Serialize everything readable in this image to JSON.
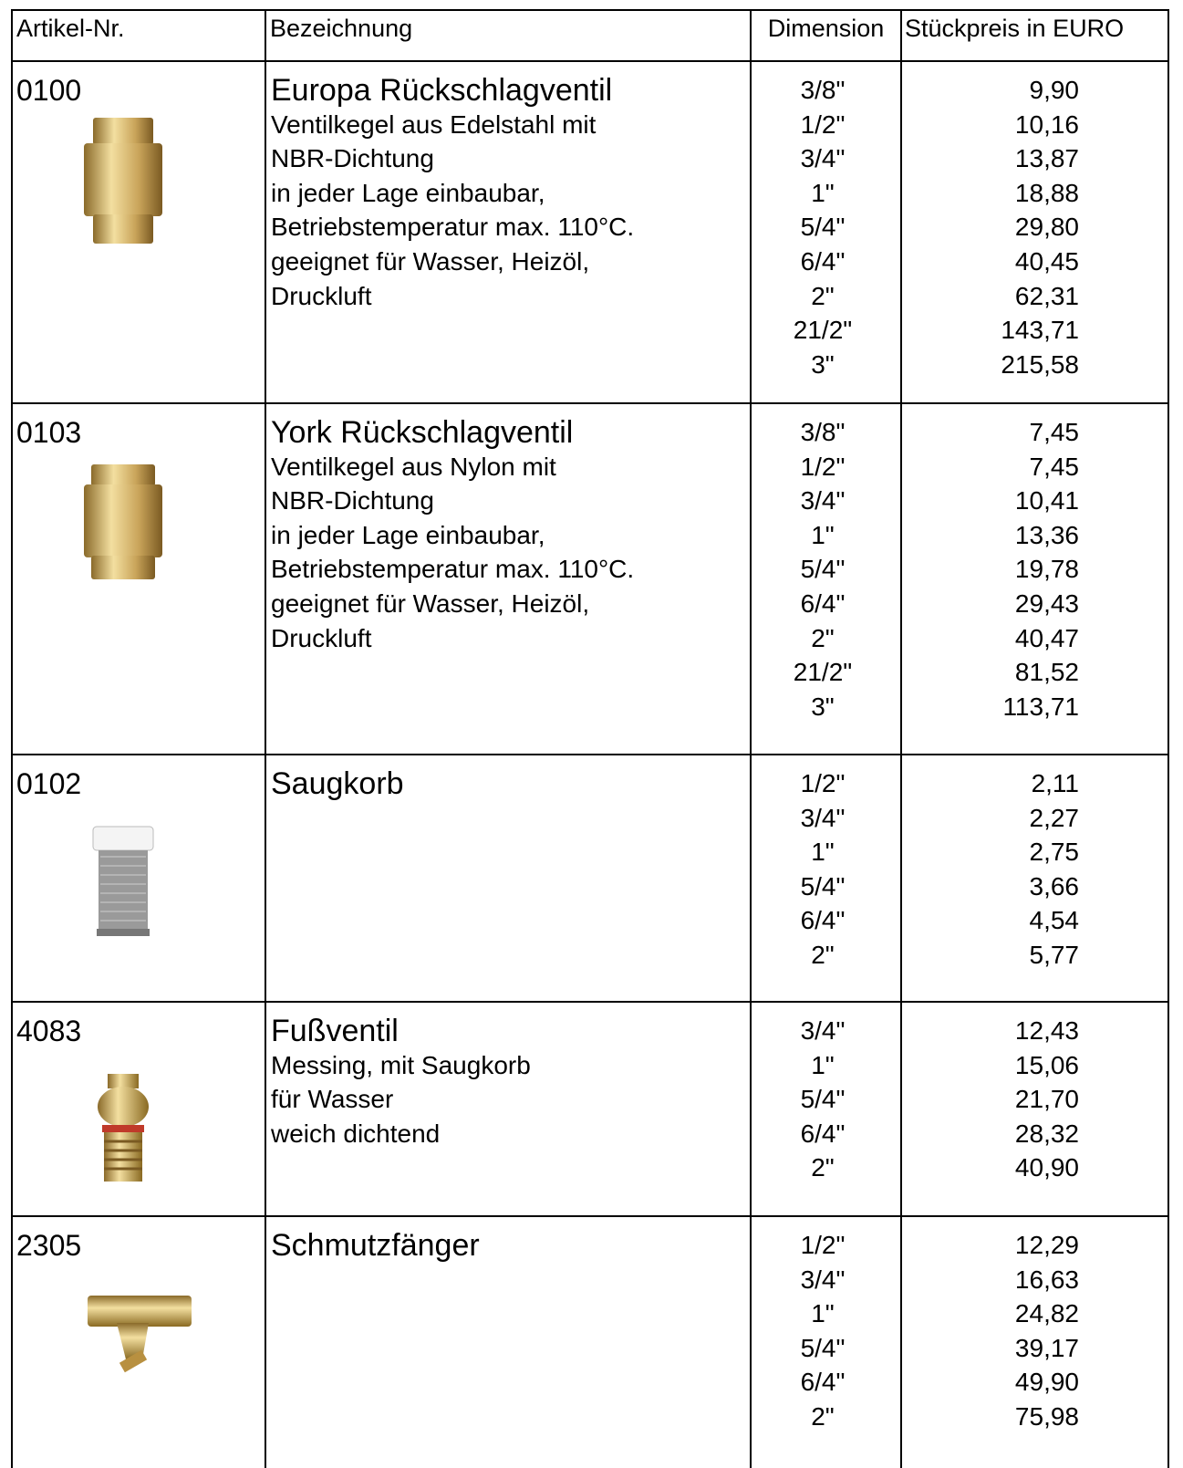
{
  "header": [
    "Artikel-Nr.",
    "Bezeichnung",
    "Dimension",
    "Stückpreis in EURO"
  ],
  "items": [
    {
      "number": "0100",
      "title": "Europa Rückschlagventil",
      "description": [
        "Ventilkegel aus Edelstahl mit",
        "NBR-Dichtung",
        "in jeder Lage einbaubar,",
        "Betriebstemperatur max. 110°C.",
        "geeignet für Wasser, Heizöl,",
        "Druckluft"
      ],
      "dimensions": [
        "3/8\"",
        "1/2\"",
        "3/4\"",
        "1\"",
        "5/4\"",
        "6/4\"",
        "2\"",
        "21/2\"",
        "3\""
      ],
      "prices": [
        "9,90",
        "10,16",
        "13,87",
        "18,88",
        "29,80",
        "40,45",
        "62,31",
        "143,71",
        "215,58"
      ]
    },
    {
      "number": "0103",
      "title": "York Rückschlagventil",
      "description": [
        "Ventilkegel aus Nylon mit",
        "NBR-Dichtung",
        "in jeder Lage einbaubar,",
        "Betriebstemperatur max. 110°C.",
        "geeignet für Wasser, Heizöl,",
        "Druckluft"
      ],
      "dimensions": [
        "3/8\"",
        "1/2\"",
        "3/4\"",
        "1\"",
        "5/4\"",
        "6/4\"",
        "2\"",
        "21/2\"",
        "3\""
      ],
      "prices": [
        "7,45",
        "7,45",
        "10,41",
        "13,36",
        "19,78",
        "29,43",
        "40,47",
        "81,52",
        "113,71"
      ]
    },
    {
      "number": "0102",
      "title": "Saugkorb",
      "description": [],
      "dimensions": [
        "1/2\"",
        "3/4\"",
        "1\"",
        "5/4\"",
        "6/4\"",
        "2\""
      ],
      "prices": [
        "2,11",
        "2,27",
        "2,75",
        "3,66",
        "4,54",
        "5,77"
      ]
    },
    {
      "number": "4083",
      "title": "Fußventil",
      "description": [
        "Messing, mit Saugkorb",
        "für Wasser",
        "weich dichtend"
      ],
      "dimensions": [
        "3/4\"",
        "1\"",
        "5/4\"",
        "6/4\"",
        "2\""
      ],
      "prices": [
        "12,43",
        "15,06",
        "21,70",
        "28,32",
        "40,90"
      ]
    },
    {
      "number": "2305",
      "title": "Schmutzfänger",
      "description": [],
      "dimensions": [
        "1/2\"",
        "3/4\"",
        "1\"",
        "5/4\"",
        "6/4\"",
        "2\""
      ],
      "prices": [
        "12,29",
        "16,63",
        "24,82",
        "39,17",
        "49,90",
        "75,98"
      ]
    }
  ]
}
